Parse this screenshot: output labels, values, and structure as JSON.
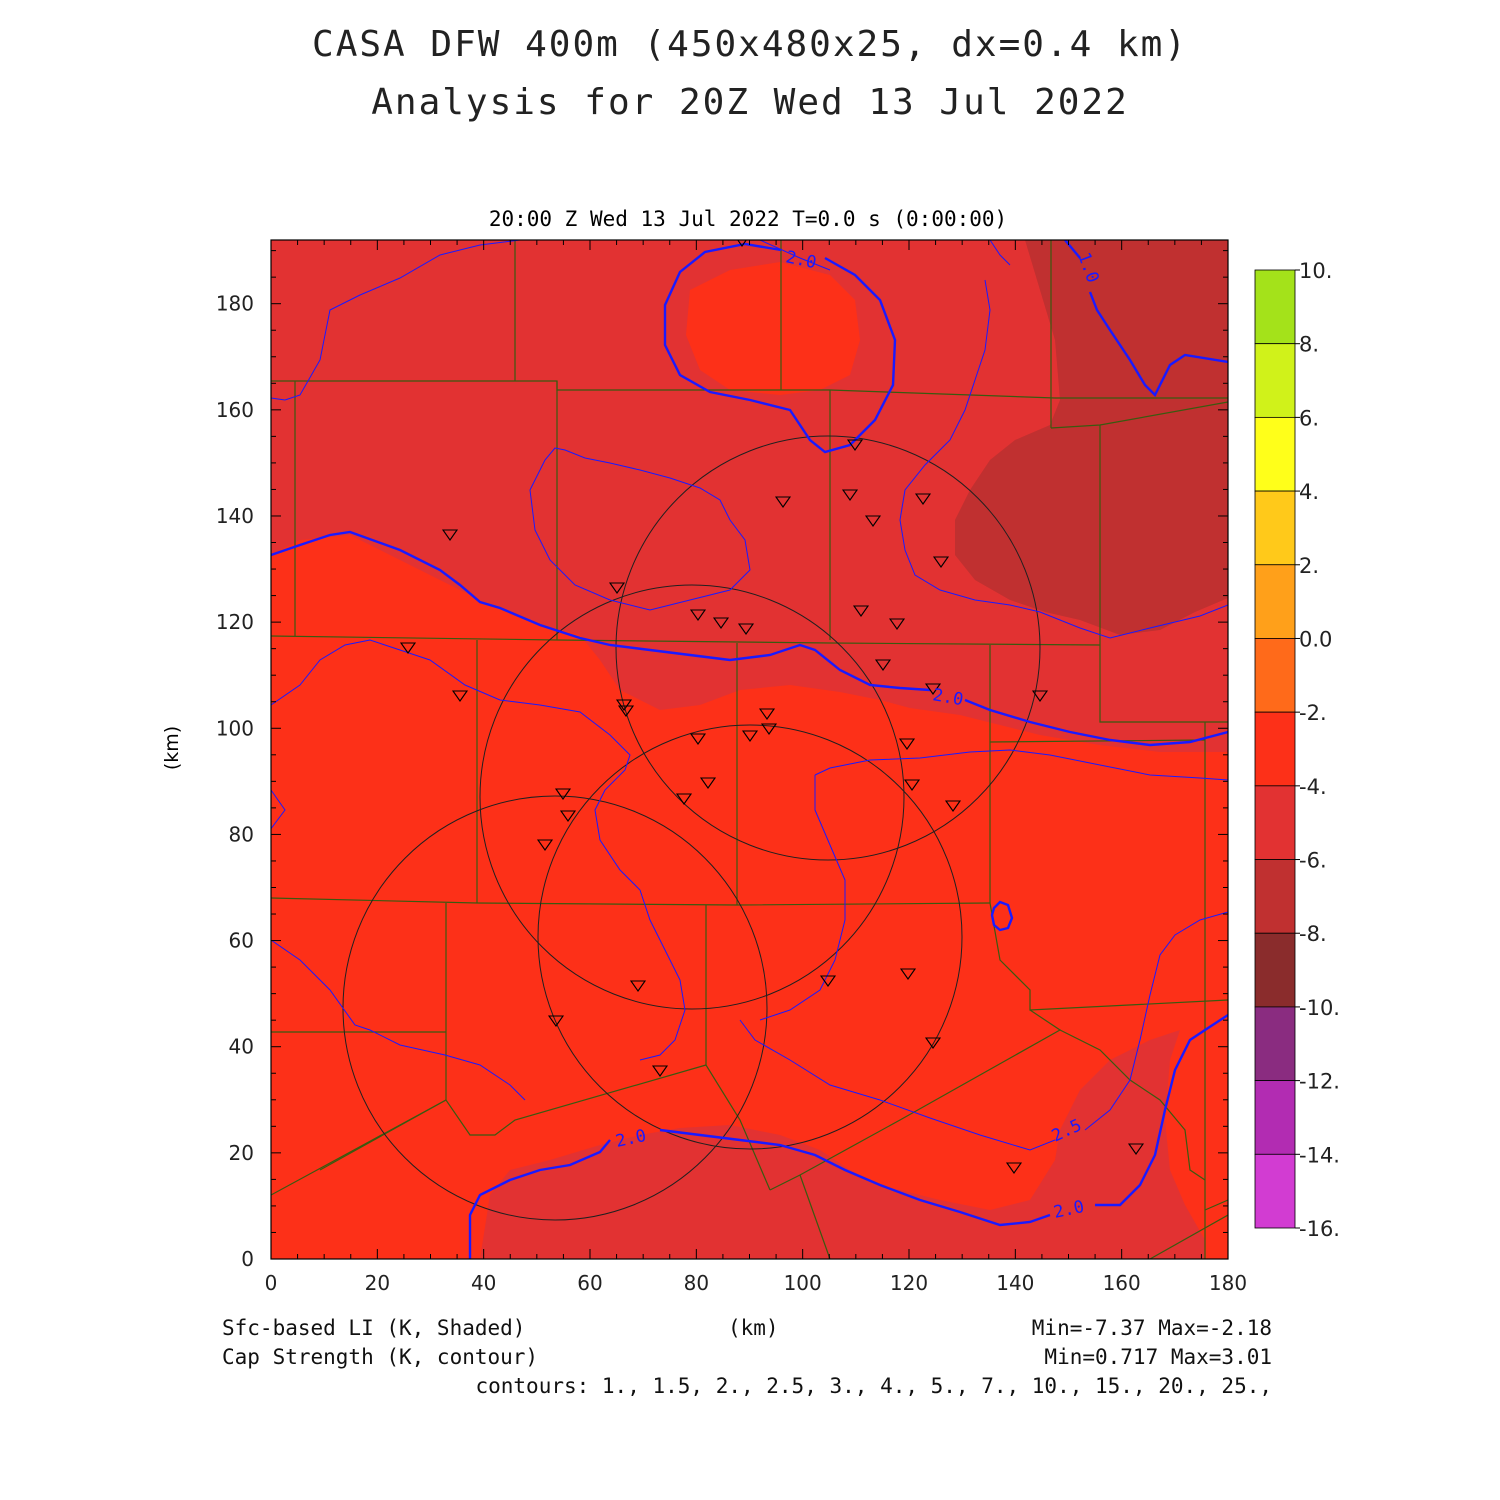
{
  "header": {
    "title_line1": "CASA DFW 400m (450x480x25, dx=0.4 km)",
    "title_line2": "Analysis for 20Z Wed 13 Jul 2022"
  },
  "plot": {
    "subtitle": "20:00 Z Wed 13 Jul 2022   T=0.0 s (0:00:00)",
    "x_axis": {
      "label": "(km)",
      "ticks": [
        "0",
        "20",
        "40",
        "60",
        "80",
        "100",
        "120",
        "140",
        "160",
        "180"
      ],
      "range": [
        0,
        180
      ]
    },
    "y_axis": {
      "label": "(km)",
      "ticks": [
        "0",
        "20",
        "40",
        "60",
        "80",
        "100",
        "120",
        "140",
        "160",
        "180"
      ],
      "range": [
        0,
        192
      ]
    },
    "contour_labels": [
      "2.0",
      "1.0",
      "2.0",
      "2.0",
      "2.5",
      "2.0"
    ],
    "shading_colors": {
      "-2_to_-4": "#fd3018",
      "-4_to_-6": "#e23232",
      "-6_to_-8": "#c03030"
    },
    "contour_color": "#1a1aff",
    "county_line_color": "#3a5a10",
    "radar_range_rings": 4
  },
  "colorbar": {
    "labels": [
      "10.",
      "8.",
      "6.",
      "4.",
      "2.",
      "0.0",
      "-2.",
      "-4.",
      "-6.",
      "-8.",
      "-10.",
      "-12.",
      "-14.",
      "-16."
    ],
    "colors": [
      "#a4e21a",
      "#d0f21a",
      "#ffff1a",
      "#ffc91a",
      "#ffa01a",
      "#ff6a1a",
      "#fd3018",
      "#e23232",
      "#c03030",
      "#8a2c2c",
      "#8a2c80",
      "#b22cb2",
      "#d23cd2"
    ]
  },
  "footer": {
    "left1": "Sfc-based LI (K, Shaded)",
    "left2": "Cap Strength (K, contour)",
    "center": "(km)",
    "right1": "Min=-7.37 Max=-2.18",
    "right2": "Min=0.717 Max=3.01",
    "contours": "contours: 1., 1.5, 2., 2.5, 3., 4., 5., 7., 10., 15., 20., 25.,"
  }
}
